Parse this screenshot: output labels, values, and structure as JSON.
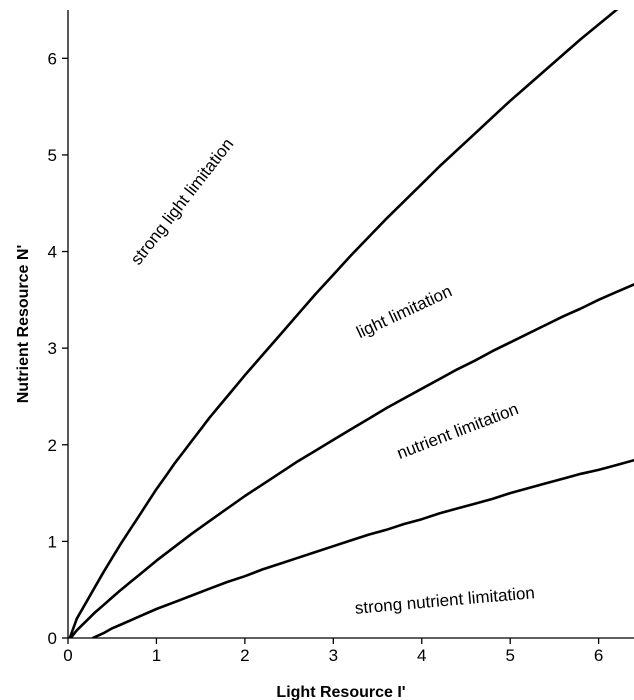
{
  "chart_data": {
    "type": "line",
    "title": "",
    "xlabel": "Light Resource I'",
    "ylabel": "Nutrient Resource N'",
    "xlim": [
      0,
      6.4
    ],
    "ylim": [
      0,
      6.5
    ],
    "xticks": [
      0,
      1,
      2,
      3,
      4,
      5,
      6
    ],
    "yticks": [
      0,
      1,
      2,
      3,
      4,
      5,
      6
    ],
    "grid": false,
    "legend": "none",
    "series": [
      {
        "x": [
          0.02,
          0.1,
          0.2,
          0.3,
          0.4,
          0.5,
          0.6,
          0.7,
          0.8,
          0.9,
          1.0,
          1.1,
          1.2,
          1.3,
          1.4,
          1.5,
          1.6,
          1.8,
          2.0,
          2.2,
          2.4,
          2.6,
          2.8,
          3.0,
          3.2,
          3.4,
          3.6,
          3.8,
          4.0,
          4.2,
          4.4,
          4.6,
          4.8,
          5.0,
          5.2,
          5.4,
          5.6,
          5.8,
          6.0,
          6.2,
          6.4
        ],
        "y": [
          0.0,
          0.2,
          0.36,
          0.52,
          0.68,
          0.83,
          0.98,
          1.12,
          1.26,
          1.4,
          1.54,
          1.67,
          1.8,
          1.92,
          2.04,
          2.16,
          2.28,
          2.5,
          2.72,
          2.93,
          3.14,
          3.35,
          3.56,
          3.76,
          3.96,
          4.15,
          4.34,
          4.52,
          4.7,
          4.88,
          5.05,
          5.22,
          5.39,
          5.56,
          5.72,
          5.88,
          6.04,
          6.2,
          6.35,
          6.5,
          6.64
        ]
      },
      {
        "x": [
          0.03,
          0.1,
          0.2,
          0.3,
          0.4,
          0.5,
          0.6,
          0.8,
          1.0,
          1.2,
          1.4,
          1.6,
          1.8,
          2.0,
          2.2,
          2.4,
          2.6,
          2.8,
          3.0,
          3.2,
          3.4,
          3.6,
          3.8,
          4.0,
          4.2,
          4.4,
          4.6,
          4.8,
          5.0,
          5.2,
          5.4,
          5.6,
          5.8,
          6.0,
          6.2,
          6.4
        ],
        "y": [
          0.0,
          0.08,
          0.17,
          0.26,
          0.34,
          0.42,
          0.5,
          0.65,
          0.8,
          0.94,
          1.08,
          1.21,
          1.34,
          1.47,
          1.59,
          1.71,
          1.83,
          1.94,
          2.05,
          2.16,
          2.27,
          2.38,
          2.48,
          2.58,
          2.68,
          2.78,
          2.87,
          2.97,
          3.06,
          3.15,
          3.24,
          3.33,
          3.41,
          3.5,
          3.58,
          3.66
        ]
      },
      {
        "x": [
          0.28,
          0.4,
          0.5,
          0.6,
          0.8,
          1.0,
          1.2,
          1.4,
          1.6,
          1.8,
          2.0,
          2.2,
          2.4,
          2.6,
          2.8,
          3.0,
          3.2,
          3.4,
          3.6,
          3.8,
          4.0,
          4.2,
          4.4,
          4.6,
          4.8,
          5.0,
          5.2,
          5.4,
          5.6,
          5.8,
          6.0,
          6.2,
          6.4
        ],
        "y": [
          0.0,
          0.05,
          0.1,
          0.14,
          0.22,
          0.3,
          0.37,
          0.44,
          0.51,
          0.58,
          0.64,
          0.71,
          0.77,
          0.83,
          0.89,
          0.95,
          1.01,
          1.07,
          1.12,
          1.18,
          1.23,
          1.29,
          1.34,
          1.39,
          1.44,
          1.5,
          1.55,
          1.6,
          1.65,
          1.7,
          1.74,
          1.79,
          1.84
        ]
      }
    ],
    "annotations": [
      {
        "text": "strong light limitation",
        "x": 0.8,
        "y": 3.85,
        "angle": -52
      },
      {
        "text": "light limitation",
        "x": 3.3,
        "y": 3.1,
        "angle": -25
      },
      {
        "text": "nutrient limitation",
        "x": 3.75,
        "y": 1.85,
        "angle": -21
      },
      {
        "text": "strong nutrient limitation",
        "x": 3.25,
        "y": 0.25,
        "angle": -5
      }
    ]
  }
}
